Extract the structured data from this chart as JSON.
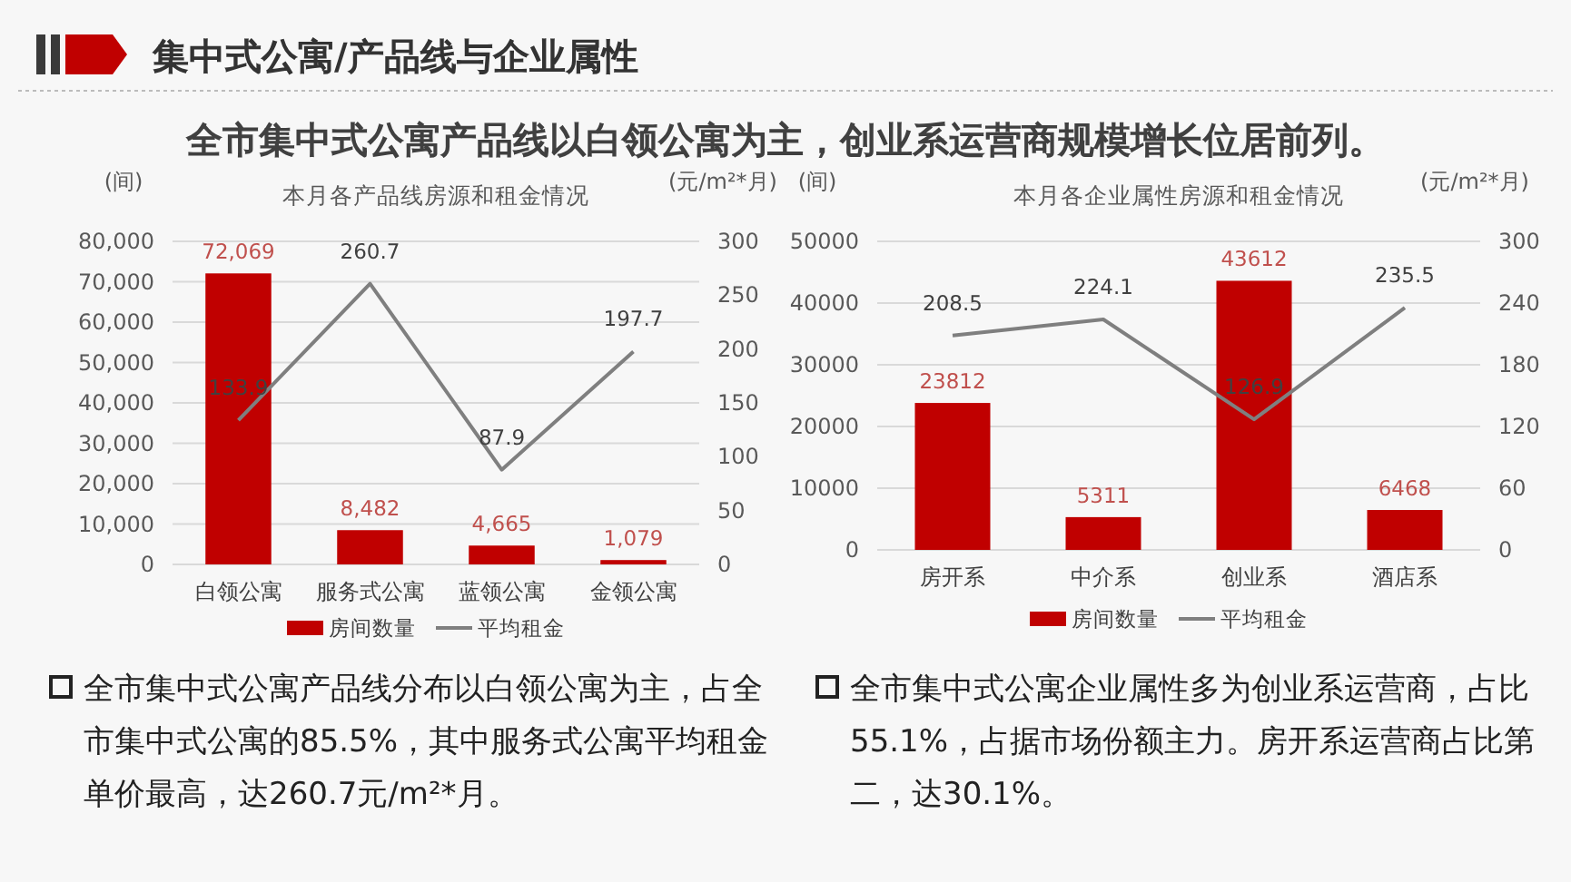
{
  "chart_data": [
    {
      "type": "other",
      "title": "集中式公寓/产品线与企业属性",
      "subtitle": "全市集中式公寓产品线以白领公寓为主，创业系运营商规模增长位居前列。",
      "annotations": [
        "全市集中式公寓产品线分布以白领公寓为主，占全市集中式公寓的85.5%，其中服务式公寓平均租金单价最高，达260.7元/m²*月。",
        "全市集中式公寓企业属性多为创业系运营商，占比55.1%，占据市场份额主力。房开系运营商占比第二，达30.1%。"
      ]
    },
    {
      "type": "bar",
      "title": "本月各产品线房源和租金情况",
      "ylabel": "(间)",
      "y2label": "(元/m²*月)",
      "categories": [
        "白领公寓",
        "服务式公寓",
        "蓝领公寓",
        "金领公寓"
      ],
      "series": [
        {
          "name": "房间数量",
          "type": "bar",
          "color": "#c00000",
          "values": [
            72069,
            8482,
            4665,
            1079
          ],
          "value_labels": [
            "72,069",
            "8,482",
            "4,665",
            "1,079"
          ]
        },
        {
          "name": "平均租金",
          "type": "line",
          "axis": "y2",
          "color": "#7f7f7f",
          "values": [
            133.9,
            260.7,
            87.9,
            197.7
          ],
          "value_labels": [
            "133.9",
            "260.7",
            "87.9",
            "197.7"
          ]
        }
      ],
      "ylim": [
        0,
        80000
      ],
      "yticks": [
        0,
        {
          "value": 10000,
          "label": "10,000"
        },
        {
          "value": 20000,
          "label": "20,000"
        },
        {
          "value": 30000,
          "label": "30,000"
        },
        {
          "value": 40000,
          "label": "40,000"
        },
        {
          "value": 50000,
          "label": "50,000"
        },
        {
          "value": 60000,
          "label": "60,000"
        },
        {
          "value": 70000,
          "label": "70,000"
        },
        {
          "value": 80000,
          "label": "80,000"
        }
      ],
      "y2lim": [
        0,
        300
      ],
      "y2ticks": [
        0,
        50,
        100,
        150,
        200,
        250,
        300
      ],
      "grid": "y",
      "legend": "bottom"
    },
    {
      "type": "bar",
      "title": "本月各企业属性房源和租金情况",
      "ylabel": "(间)",
      "y2label": "(元/m²*月)",
      "categories": [
        "房开系",
        "中介系",
        "创业系",
        "酒店系"
      ],
      "series": [
        {
          "name": "房间数量",
          "type": "bar",
          "color": "#c00000",
          "values": [
            23812,
            5311,
            43612,
            6468
          ],
          "value_labels": [
            "23812",
            "5311",
            "43612",
            "6468"
          ]
        },
        {
          "name": "平均租金",
          "type": "line",
          "axis": "y2",
          "color": "#7f7f7f",
          "values": [
            208.5,
            224.1,
            126.9,
            235.5
          ],
          "value_labels": [
            "208.5",
            "224.1",
            "126.9",
            "235.5"
          ]
        }
      ],
      "ylim": [
        0,
        50000
      ],
      "yticks": [
        0,
        10000,
        20000,
        30000,
        40000,
        50000
      ],
      "y2lim": [
        0,
        300
      ],
      "y2ticks": [
        0,
        60,
        120,
        180,
        240,
        300
      ],
      "grid": "y",
      "legend": "bottom"
    }
  ]
}
